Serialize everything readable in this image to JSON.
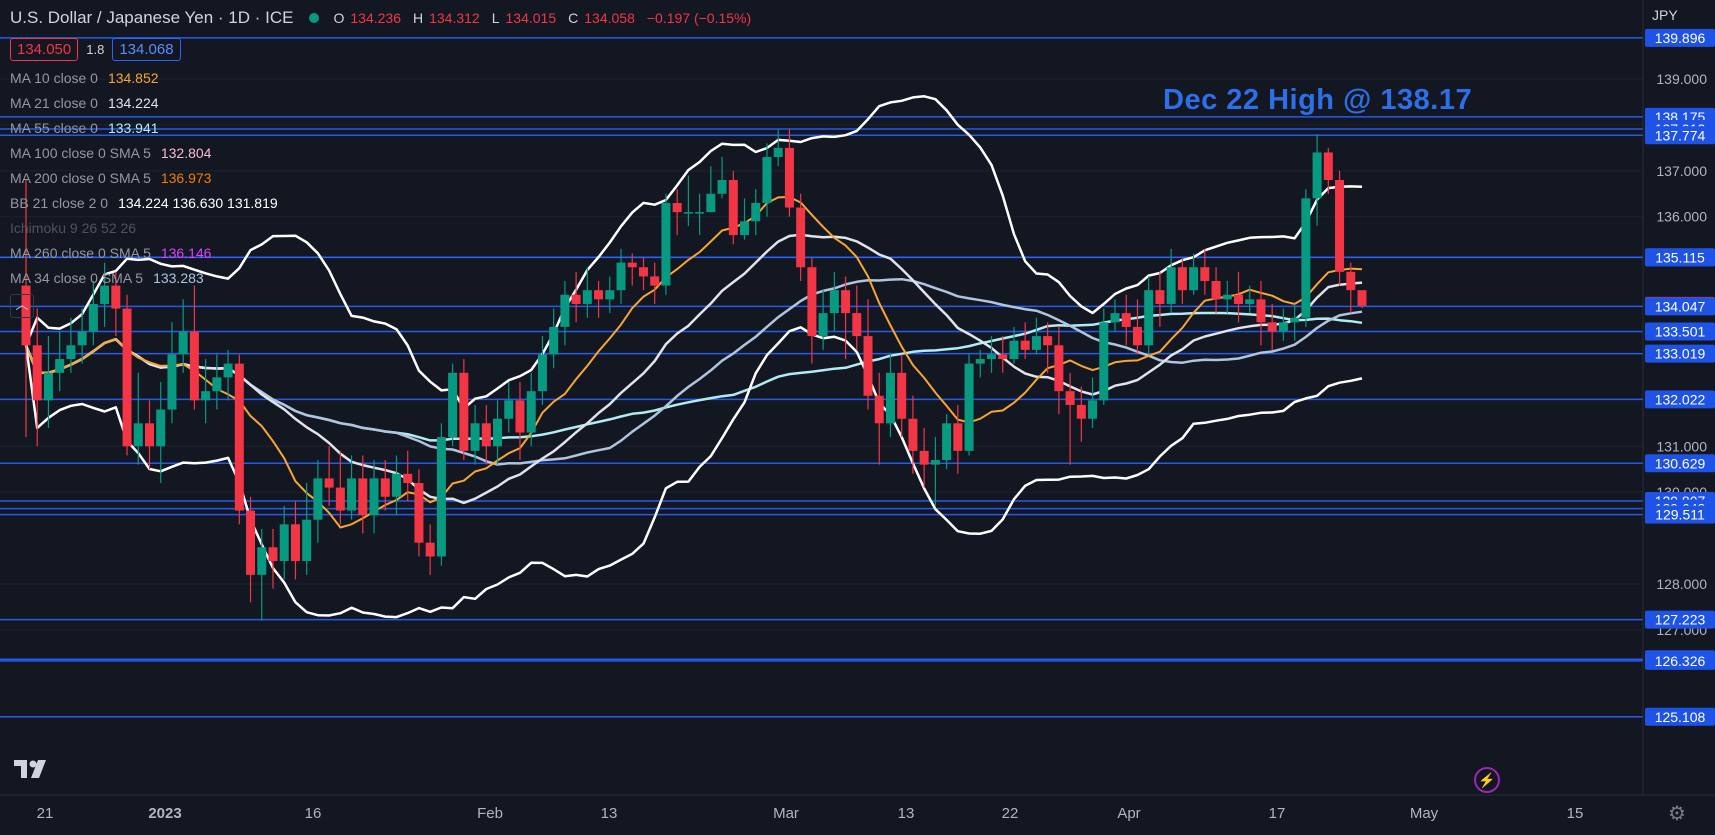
{
  "header": {
    "symbol": "U.S. Dollar / Japanese Yen · 1D · ICE",
    "ohlc": [
      {
        "k": "O",
        "v": "134.236"
      },
      {
        "k": "H",
        "v": "134.312"
      },
      {
        "k": "L",
        "v": "134.015"
      },
      {
        "k": "C",
        "v": "134.058"
      }
    ],
    "change": "−0.197 (−0.15%)",
    "bid": "134.050",
    "spread": "1.8",
    "ask": "134.068",
    "currency": "JPY"
  },
  "indicators": [
    {
      "name": "MA 10 close 0",
      "value": "134.852",
      "color": "#f7a634"
    },
    {
      "name": "MA 21 close 0",
      "value": "134.224",
      "color": "#e0e3eb"
    },
    {
      "name": "MA 55 close 0",
      "value": "133.941",
      "color": "#b2ebf2"
    },
    {
      "name": "MA 100 close 0 SMA 5",
      "value": "132.804",
      "color": "#f8bbd0"
    },
    {
      "name": "MA 200 close 0 SMA 5",
      "value": "136.973",
      "color": "#f57c00"
    },
    {
      "name": "BB 21 close 2 0",
      "value": "134.224  136.630  131.819",
      "color": "#ffffff"
    },
    {
      "name": "Ichimoku 9 26 52 26",
      "value": "",
      "color": "#50535e",
      "dim": true
    },
    {
      "name": "MA 260 close 0 SMA 5",
      "value": "136.146",
      "color": "#e040fb"
    },
    {
      "name": "MA 34 close 0 SMA 5",
      "value": "133.283",
      "color": "#b0c4de"
    }
  ],
  "annotation": "Dec 22 High @ 138.17",
  "colors": {
    "up": "#089981",
    "down": "#f23645",
    "level_line": "#2962ff",
    "grid": "#1e222d",
    "background": "#131722"
  },
  "chart_data": {
    "type": "candlestick",
    "x_ticks": [
      "21",
      "2023",
      "16",
      "Feb",
      "13",
      "Mar",
      "13",
      "22",
      "Apr",
      "17",
      "May",
      "15"
    ],
    "y_ticks": [
      139.0,
      138.0,
      137.0,
      136.0,
      131.0,
      130.0,
      128.0,
      127.0
    ],
    "y_tick_labels": [
      "139.000",
      "138.000",
      "137.000",
      "136.000",
      "131.000",
      "130.000",
      "128.000",
      "127.000"
    ],
    "price_labels": [
      {
        "value": "139.896",
        "kind": "level"
      },
      {
        "value": "138.175",
        "kind": "level"
      },
      {
        "value": "137.912",
        "kind": "level"
      },
      {
        "value": "137.774",
        "kind": "level"
      },
      {
        "value": "135.116",
        "kind": "level"
      },
      {
        "value": "135.115",
        "kind": "level"
      },
      {
        "value": "134.058",
        "kind": "last"
      },
      {
        "value": "134.047",
        "kind": "level"
      },
      {
        "value": "133.501",
        "kind": "level"
      },
      {
        "value": "133.019",
        "kind": "level"
      },
      {
        "value": "132.022",
        "kind": "level"
      },
      {
        "value": "130.629",
        "kind": "level"
      },
      {
        "value": "129.807",
        "kind": "level"
      },
      {
        "value": "129.643",
        "kind": "level"
      },
      {
        "value": "129.511",
        "kind": "level"
      },
      {
        "value": "127.223",
        "kind": "level"
      },
      {
        "value": "126.362",
        "kind": "level"
      },
      {
        "value": "126.326",
        "kind": "level"
      },
      {
        "value": "125.108",
        "kind": "level"
      }
    ],
    "candles": [
      [
        134.5,
        133.2,
        136.8,
        131.2
      ],
      [
        133.2,
        132.0,
        134.0,
        131.0
      ],
      [
        132.0,
        132.6,
        133.4,
        131.4
      ],
      [
        132.6,
        132.9,
        133.5,
        132.2
      ],
      [
        132.9,
        133.2,
        133.8,
        132.6
      ],
      [
        133.2,
        133.5,
        134.0,
        132.8
      ],
      [
        133.5,
        134.1,
        134.6,
        133.2
      ],
      [
        134.1,
        134.5,
        135.0,
        133.6
      ],
      [
        134.5,
        134.0,
        134.8,
        133.4
      ],
      [
        134.0,
        131.0,
        134.3,
        130.8
      ],
      [
        131.0,
        131.5,
        132.6,
        130.6
      ],
      [
        131.5,
        131.0,
        132.0,
        130.5
      ],
      [
        131.0,
        131.8,
        132.4,
        130.2
      ],
      [
        131.8,
        133.0,
        133.7,
        131.5
      ],
      [
        133.0,
        133.5,
        134.2,
        132.6
      ],
      [
        133.5,
        132.0,
        134.5,
        131.8
      ],
      [
        132.0,
        132.2,
        132.9,
        131.5
      ],
      [
        132.2,
        132.5,
        133.0,
        131.8
      ],
      [
        132.5,
        132.8,
        133.1,
        132.0
      ],
      [
        132.8,
        129.6,
        133.0,
        129.3
      ],
      [
        129.6,
        128.2,
        129.9,
        127.6
      ],
      [
        128.2,
        128.8,
        129.2,
        127.2
      ],
      [
        128.8,
        128.5,
        129.2,
        127.9
      ],
      [
        128.5,
        129.3,
        129.7,
        128.1
      ],
      [
        129.3,
        128.5,
        129.8,
        128.1
      ],
      [
        128.5,
        129.4,
        130.2,
        128.2
      ],
      [
        129.4,
        130.3,
        130.7,
        128.9
      ],
      [
        130.3,
        130.1,
        131.0,
        129.7
      ],
      [
        130.1,
        129.6,
        130.9,
        129.3
      ],
      [
        129.6,
        130.3,
        130.8,
        129.4
      ],
      [
        130.3,
        129.5,
        130.8,
        129.1
      ],
      [
        129.5,
        130.3,
        130.7,
        129.1
      ],
      [
        130.3,
        129.9,
        130.7,
        129.6
      ],
      [
        129.9,
        130.4,
        130.8,
        129.5
      ],
      [
        130.4,
        130.2,
        130.9,
        129.8
      ],
      [
        130.2,
        128.9,
        130.5,
        128.6
      ],
      [
        128.9,
        128.6,
        129.3,
        128.2
      ],
      [
        128.6,
        131.2,
        131.5,
        128.4
      ],
      [
        131.2,
        132.6,
        132.8,
        131.0
      ],
      [
        132.6,
        130.9,
        132.9,
        130.7
      ],
      [
        130.9,
        131.5,
        131.9,
        130.6
      ],
      [
        131.5,
        131.0,
        131.9,
        130.6
      ],
      [
        131.0,
        131.6,
        132.0,
        130.6
      ],
      [
        131.6,
        132.0,
        132.4,
        131.3
      ],
      [
        132.0,
        131.3,
        132.4,
        130.7
      ],
      [
        131.3,
        132.2,
        132.6,
        131.0
      ],
      [
        132.2,
        133.0,
        133.4,
        131.9
      ],
      [
        133.0,
        133.6,
        134.0,
        132.7
      ],
      [
        133.6,
        134.3,
        134.6,
        133.2
      ],
      [
        134.3,
        134.1,
        134.8,
        133.7
      ],
      [
        134.1,
        134.4,
        134.9,
        133.8
      ],
      [
        134.4,
        134.2,
        134.6,
        133.8
      ],
      [
        134.2,
        134.4,
        134.7,
        133.9
      ],
      [
        134.4,
        135.0,
        135.3,
        134.1
      ],
      [
        135.0,
        134.9,
        135.2,
        134.5
      ],
      [
        134.9,
        134.7,
        135.1,
        134.4
      ],
      [
        134.7,
        134.5,
        135.0,
        134.1
      ],
      [
        134.5,
        136.3,
        136.5,
        134.3
      ],
      [
        136.3,
        136.1,
        136.6,
        135.6
      ],
      [
        136.1,
        136.1,
        136.9,
        135.8
      ],
      [
        136.1,
        136.1,
        136.5,
        135.6
      ],
      [
        136.1,
        136.5,
        137.1,
        136.1
      ],
      [
        136.5,
        136.8,
        137.3,
        136.4
      ],
      [
        136.8,
        135.6,
        137.0,
        135.4
      ],
      [
        135.6,
        135.9,
        136.4,
        135.5
      ],
      [
        135.9,
        136.3,
        136.6,
        135.6
      ],
      [
        136.3,
        137.3,
        137.6,
        136.0
      ],
      [
        137.3,
        137.5,
        137.9,
        137.1
      ],
      [
        137.5,
        136.2,
        137.9,
        136.0
      ],
      [
        136.2,
        134.9,
        136.5,
        134.6
      ],
      [
        134.9,
        133.4,
        135.1,
        132.8
      ],
      [
        133.4,
        133.9,
        134.4,
        133.1
      ],
      [
        133.9,
        134.4,
        134.8,
        133.5
      ],
      [
        134.4,
        133.9,
        134.7,
        132.9
      ],
      [
        133.9,
        133.4,
        134.5,
        133.1
      ],
      [
        133.4,
        132.1,
        134.2,
        131.8
      ],
      [
        132.1,
        131.5,
        132.6,
        130.6
      ],
      [
        131.5,
        132.6,
        133.0,
        131.2
      ],
      [
        132.6,
        131.6,
        133.0,
        131.2
      ],
      [
        131.6,
        130.9,
        132.1,
        130.4
      ],
      [
        130.9,
        130.6,
        131.4,
        130.1
      ],
      [
        130.6,
        130.7,
        131.2,
        129.7
      ],
      [
        130.7,
        131.5,
        131.7,
        130.5
      ],
      [
        131.5,
        130.9,
        131.9,
        130.4
      ],
      [
        130.9,
        132.8,
        133.0,
        130.8
      ],
      [
        132.8,
        132.9,
        133.1,
        132.5
      ],
      [
        132.9,
        133.0,
        133.4,
        132.6
      ],
      [
        133.0,
        132.9,
        133.4,
        132.6
      ],
      [
        132.9,
        133.3,
        133.6,
        132.8
      ],
      [
        133.3,
        133.1,
        133.7,
        132.9
      ],
      [
        133.1,
        133.4,
        133.8,
        133.0
      ],
      [
        133.4,
        133.2,
        133.7,
        132.6
      ],
      [
        133.2,
        132.2,
        133.6,
        131.7
      ],
      [
        132.2,
        131.9,
        132.6,
        130.6
      ],
      [
        131.9,
        131.6,
        132.3,
        131.1
      ],
      [
        131.6,
        132.0,
        132.5,
        131.4
      ],
      [
        132.0,
        133.7,
        134.0,
        131.9
      ],
      [
        133.7,
        133.9,
        134.2,
        133.5
      ],
      [
        133.9,
        133.6,
        134.3,
        133.2
      ],
      [
        133.6,
        133.2,
        134.2,
        133.0
      ],
      [
        133.2,
        134.4,
        134.7,
        133.0
      ],
      [
        134.4,
        134.1,
        134.8,
        133.6
      ],
      [
        134.1,
        134.9,
        135.3,
        133.9
      ],
      [
        134.9,
        134.4,
        135.1,
        134.1
      ],
      [
        134.4,
        134.9,
        135.2,
        134.3
      ],
      [
        134.9,
        134.6,
        135.3,
        134.3
      ],
      [
        134.6,
        134.2,
        134.9,
        133.9
      ],
      [
        134.2,
        134.3,
        134.6,
        133.9
      ],
      [
        134.3,
        134.1,
        134.8,
        133.7
      ],
      [
        134.1,
        134.2,
        134.5,
        133.9
      ],
      [
        134.2,
        133.7,
        134.6,
        133.2
      ],
      [
        133.7,
        133.5,
        134.1,
        133.1
      ],
      [
        133.5,
        133.7,
        134.0,
        133.3
      ],
      [
        133.7,
        133.8,
        134.1,
        133.3
      ],
      [
        133.8,
        136.4,
        136.6,
        133.6
      ],
      [
        136.4,
        137.4,
        137.8,
        135.8
      ],
      [
        137.4,
        136.8,
        137.5,
        136.5
      ],
      [
        136.8,
        134.8,
        137.0,
        134.5
      ],
      [
        134.8,
        134.4,
        135.0,
        133.9
      ],
      [
        134.4,
        134.06,
        134.31,
        134.01
      ]
    ]
  }
}
